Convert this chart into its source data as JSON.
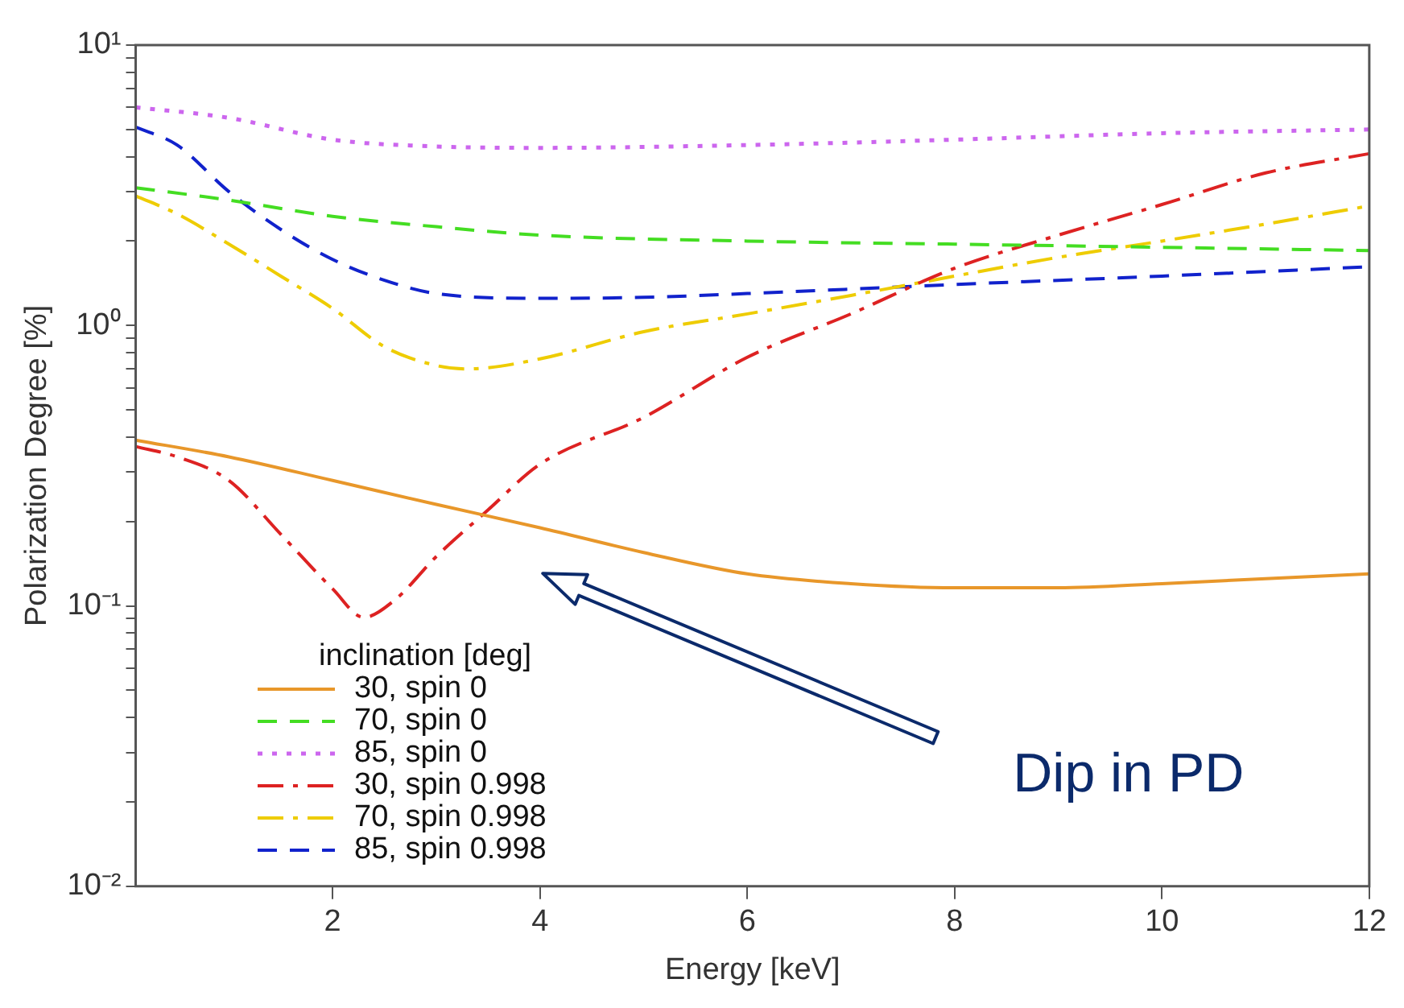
{
  "chart_data": {
    "type": "line",
    "xlabel": "Energy [keV]",
    "ylabel": "Polarization Degree [%]",
    "legend_title": "inclination [deg]",
    "legend": "bottom left",
    "log": "y",
    "grid": false,
    "marker": "none",
    "xlim": [
      0.1,
      12
    ],
    "xticks": [
      2,
      4,
      6,
      8,
      10,
      12
    ],
    "ylim": [
      0.01,
      10
    ],
    "yticks": [
      {
        "value": 0.01,
        "label": "10⁻²"
      },
      {
        "value": 0.02,
        "label": null
      },
      {
        "value": 0.03,
        "label": null
      },
      {
        "value": 0.04,
        "label": null
      },
      {
        "value": 0.05,
        "label": null
      },
      {
        "value": 0.06,
        "label": null
      },
      {
        "value": 0.07,
        "label": null
      },
      {
        "value": 0.08,
        "label": null
      },
      {
        "value": 0.09,
        "label": null
      },
      {
        "value": 0.1,
        "label": "10⁻¹"
      },
      {
        "value": 0.2,
        "label": null
      },
      {
        "value": 0.3,
        "label": null
      },
      {
        "value": 0.4,
        "label": null
      },
      {
        "value": 0.5,
        "label": null
      },
      {
        "value": 0.6,
        "label": null
      },
      {
        "value": 0.7,
        "label": null
      },
      {
        "value": 0.8,
        "label": null
      },
      {
        "value": 0.9,
        "label": null
      },
      {
        "value": 1,
        "label": "10⁰"
      },
      {
        "value": 2,
        "label": null
      },
      {
        "value": 3,
        "label": null
      },
      {
        "value": 4,
        "label": null
      },
      {
        "value": 5,
        "label": null
      },
      {
        "value": 6,
        "label": null
      },
      {
        "value": 7,
        "label": null
      },
      {
        "value": 8,
        "label": null
      },
      {
        "value": 9,
        "label": null
      },
      {
        "value": 10,
        "label": "10¹"
      }
    ],
    "series": [
      {
        "name": "30, spin 0",
        "color": "#e8972a",
        "line_style": "solid",
        "x": [
          0.1,
          1,
          2,
          3,
          4,
          5,
          6,
          7,
          8,
          9,
          10,
          11,
          12
        ],
        "values": [
          0.39,
          0.34,
          0.28,
          0.23,
          0.19,
          0.155,
          0.13,
          0.12,
          0.116,
          0.116,
          0.12,
          0.125,
          0.13
        ]
      },
      {
        "name": "70, spin 0",
        "color": "#44dd22",
        "line_style": "dashed",
        "x": [
          0.1,
          1,
          2,
          3,
          4,
          6,
          8,
          10,
          12
        ],
        "values": [
          3.1,
          2.8,
          2.45,
          2.25,
          2.1,
          2.0,
          1.95,
          1.9,
          1.85
        ]
      },
      {
        "name": "85, spin 0",
        "color": "#cc66ee",
        "line_style": "dotted",
        "x": [
          0.1,
          1,
          2,
          3,
          4,
          6,
          8,
          10,
          12
        ],
        "values": [
          6.0,
          5.5,
          4.6,
          4.35,
          4.3,
          4.4,
          4.6,
          4.85,
          5.0
        ]
      },
      {
        "name": "30, spin 0.998",
        "color": "#dd2222",
        "line_style": "dashdot",
        "x": [
          0.1,
          0.5,
          1,
          1.5,
          2,
          2.3,
          2.6,
          3,
          3.5,
          4,
          5,
          6,
          7,
          8,
          9,
          10,
          11,
          12
        ],
        "values": [
          0.37,
          0.34,
          0.28,
          0.18,
          0.115,
          0.091,
          0.105,
          0.15,
          0.22,
          0.32,
          0.47,
          0.77,
          1.1,
          1.6,
          2.1,
          2.7,
          3.5,
          4.1
        ]
      },
      {
        "name": "70, spin 0.998",
        "color": "#eecc00",
        "line_style": "dashdot",
        "x": [
          0.1,
          0.5,
          1,
          1.5,
          2,
          2.5,
          3,
          3.3,
          4,
          5,
          6,
          7,
          8,
          9,
          10,
          11,
          12
        ],
        "values": [
          2.9,
          2.5,
          1.95,
          1.5,
          1.15,
          0.84,
          0.72,
          0.7,
          0.76,
          0.95,
          1.1,
          1.28,
          1.5,
          1.75,
          2.0,
          2.3,
          2.67
        ]
      },
      {
        "name": "85, spin 0.998",
        "color": "#1122cc",
        "line_style": "dashed",
        "x": [
          0.1,
          0.5,
          1,
          1.5,
          2,
          2.5,
          3,
          4,
          5,
          6,
          8,
          10,
          12
        ],
        "values": [
          5.1,
          4.4,
          3.0,
          2.2,
          1.72,
          1.45,
          1.3,
          1.25,
          1.26,
          1.3,
          1.4,
          1.5,
          1.62
        ]
      }
    ],
    "annotations": [
      "Dip in PD"
    ]
  }
}
